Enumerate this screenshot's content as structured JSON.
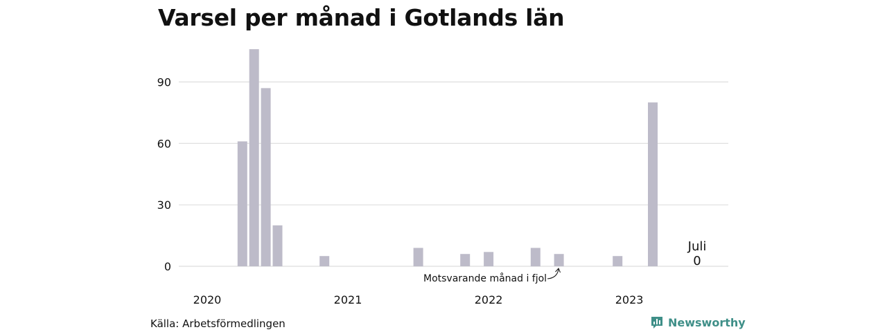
{
  "colors": {
    "bar": "#bdbbc9",
    "grid": "#dddddd",
    "brand": "#3f8f88"
  },
  "chart_data": {
    "type": "bar",
    "title": "Varsel per månad i Gotlands län",
    "xlabel": "",
    "ylabel": "",
    "ylim": [
      0,
      110
    ],
    "yticks": [
      0,
      30,
      60,
      90
    ],
    "year_labels": [
      "2020",
      "2021",
      "2022",
      "2023"
    ],
    "month_start": "2020-01",
    "values": [
      0,
      0,
      0,
      61,
      106,
      87,
      20,
      0,
      0,
      0,
      5,
      0,
      0,
      0,
      0,
      0,
      0,
      0,
      9,
      0,
      0,
      0,
      6,
      0,
      7,
      0,
      0,
      0,
      9,
      0,
      6,
      0,
      0,
      0,
      0,
      5,
      0,
      0,
      80,
      0,
      0,
      0,
      0
    ],
    "annotation": "Motsvarande månad i fjol",
    "callout": {
      "month": "Juli",
      "value": "0"
    },
    "grid": true,
    "legend": "none"
  },
  "source": "Källa: Arbetsförmedlingen",
  "brand": {
    "name": "Newsworthy",
    "icon": "bar-chart-badge-icon"
  }
}
